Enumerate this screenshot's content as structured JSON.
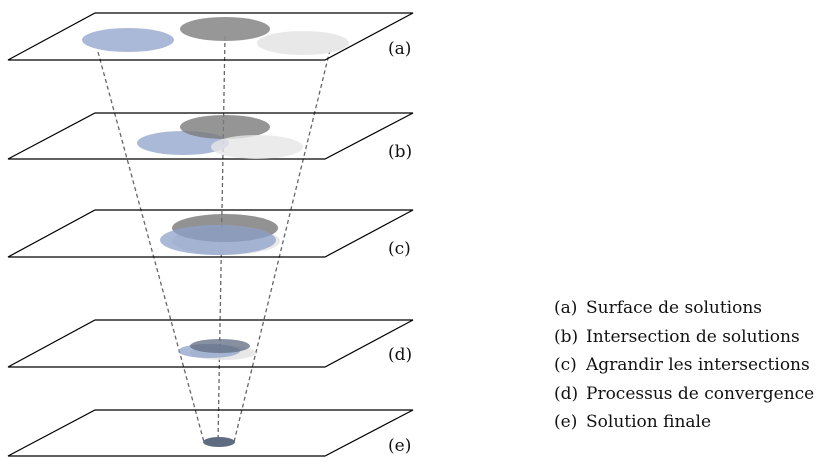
{
  "layers": [
    {
      "label": "(a)"
    },
    {
      "label": "(b)"
    },
    {
      "label": "(c)"
    },
    {
      "label": "(d)"
    },
    {
      "label": "(e)"
    }
  ],
  "legend": [
    {
      "key": "(a)",
      "text": "Surface de solutions"
    },
    {
      "key": "(b)",
      "text": "Intersection de solutions"
    },
    {
      "key": "(c)",
      "text": "Agrandir les intersections"
    },
    {
      "key": "(d)",
      "text": "Processus de convergence"
    },
    {
      "key": "(e)",
      "text": "Solution finale"
    }
  ],
  "colors": {
    "blue": "#8fa2cb",
    "dark_gray": "#8c8c8c",
    "light_gray": "#e6e6e6",
    "slate": "#5f6b80",
    "outline": "#000000",
    "guide": "#666666"
  }
}
